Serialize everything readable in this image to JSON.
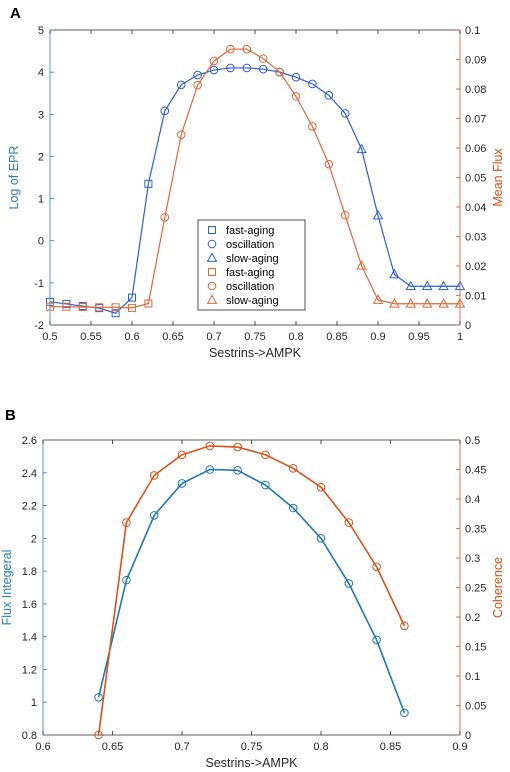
{
  "colors": {
    "blue": "#2d5fcf",
    "orange": "#e0683a",
    "blueB": "#1f77b4",
    "orangeB": "#d95319",
    "axisBlue": "#2a7fc0",
    "axisOrange": "#d95319",
    "axis": "#262626"
  },
  "chart_data": [
    {
      "panel": "A",
      "type": "line",
      "xlabel": "Sestrins->AMPK",
      "ylabel": "Log of EPR",
      "ylabel_right": "Mean Flux",
      "xlim": [
        0.5,
        1
      ],
      "ylim": [
        -2,
        5
      ],
      "ylim_right": [
        0,
        0.1
      ],
      "xticks": [
        "0.5",
        "0.55",
        "0.6",
        "0.65",
        "0.7",
        "0.75",
        "0.8",
        "0.85",
        "0.9",
        "0.95",
        "1"
      ],
      "yticks": [
        "-2",
        "-1",
        "0",
        "1",
        "2",
        "3",
        "4",
        "5"
      ],
      "yticks_right": [
        "0",
        "0.01",
        "0.02",
        "0.03",
        "0.04",
        "0.05",
        "0.06",
        "0.07",
        "0.08",
        "0.09",
        "0.1"
      ],
      "legend": [
        "fast-aging",
        "oscillation",
        "slow-aging",
        "fast-aging",
        "oscillation",
        "slow-aging"
      ],
      "legend_placement": "center",
      "x": [
        0.5,
        0.52,
        0.54,
        0.56,
        0.58,
        0.6,
        0.62,
        0.64,
        0.66,
        0.68,
        0.7,
        0.72,
        0.74,
        0.76,
        0.78,
        0.8,
        0.82,
        0.84,
        0.86,
        0.88,
        0.9,
        0.92,
        0.94,
        0.96,
        0.98,
        1.0
      ],
      "series": [
        {
          "axis": "left",
          "values": [
            -1.45,
            -1.5,
            -1.55,
            -1.6,
            -1.72,
            -1.35,
            1.35,
            3.08,
            3.7,
            3.93,
            4.05,
            4.1,
            4.1,
            4.07,
            4.0,
            3.88,
            3.72,
            3.45,
            3.02,
            2.17,
            0.6,
            -0.8,
            -1.08,
            -1.08,
            -1.08,
            -1.08
          ],
          "markers": [
            "s",
            "s",
            "s",
            "s",
            "s",
            "s",
            "s",
            "o",
            "o",
            "o",
            "o",
            "o",
            "o",
            "o",
            "o",
            "o",
            "o",
            "o",
            "o",
            "^",
            "^",
            "^",
            "^",
            "^",
            "^",
            "^"
          ]
        },
        {
          "axis": "right",
          "values": [
            0.0062,
            0.0062,
            0.0061,
            0.006,
            0.006,
            0.0058,
            0.0073,
            0.0365,
            0.0645,
            0.0813,
            0.0895,
            0.0935,
            0.0935,
            0.0903,
            0.0858,
            0.0775,
            0.0673,
            0.0545,
            0.0372,
            0.0201,
            0.0085,
            0.0072,
            0.0072,
            0.0072,
            0.0072,
            0.0072
          ],
          "markers": [
            "s",
            "s",
            "s",
            "s",
            "s",
            "s",
            "s",
            "o",
            "o",
            "o",
            "o",
            "o",
            "o",
            "o",
            "o",
            "o",
            "o",
            "o",
            "o",
            "^",
            "^",
            "^",
            "^",
            "^",
            "^",
            "^"
          ]
        }
      ]
    },
    {
      "panel": "B",
      "type": "line",
      "xlabel": "Sestrins->AMPK",
      "ylabel": "Flux Integeral",
      "ylabel_right": "Coherence",
      "xlim": [
        0.6,
        0.9
      ],
      "ylim": [
        0.8,
        2.6
      ],
      "ylim_right": [
        0,
        0.5
      ],
      "xticks": [
        "0.6",
        "0.65",
        "0.7",
        "0.75",
        "0.8",
        "0.85",
        "0.9"
      ],
      "yticks": [
        "0.8",
        "1",
        "1.2",
        "1.4",
        "1.6",
        "1.8",
        "2",
        "2.2",
        "2.4",
        "2.6"
      ],
      "yticks_right": [
        "0",
        "0.05",
        "0.1",
        "0.15",
        "0.2",
        "0.25",
        "0.3",
        "0.35",
        "0.4",
        "0.45",
        "0.5"
      ],
      "x": [
        0.64,
        0.66,
        0.68,
        0.7,
        0.72,
        0.74,
        0.76,
        0.78,
        0.8,
        0.82,
        0.84,
        0.86
      ],
      "series": [
        {
          "axis": "left",
          "values": [
            1.03,
            1.745,
            2.14,
            2.335,
            2.42,
            2.415,
            2.325,
            2.185,
            2.0,
            1.725,
            1.38,
            0.935
          ]
        },
        {
          "axis": "right",
          "values": [
            0.0,
            0.36,
            0.44,
            0.475,
            0.49,
            0.488,
            0.475,
            0.452,
            0.42,
            0.36,
            0.285,
            0.185
          ]
        }
      ]
    }
  ]
}
